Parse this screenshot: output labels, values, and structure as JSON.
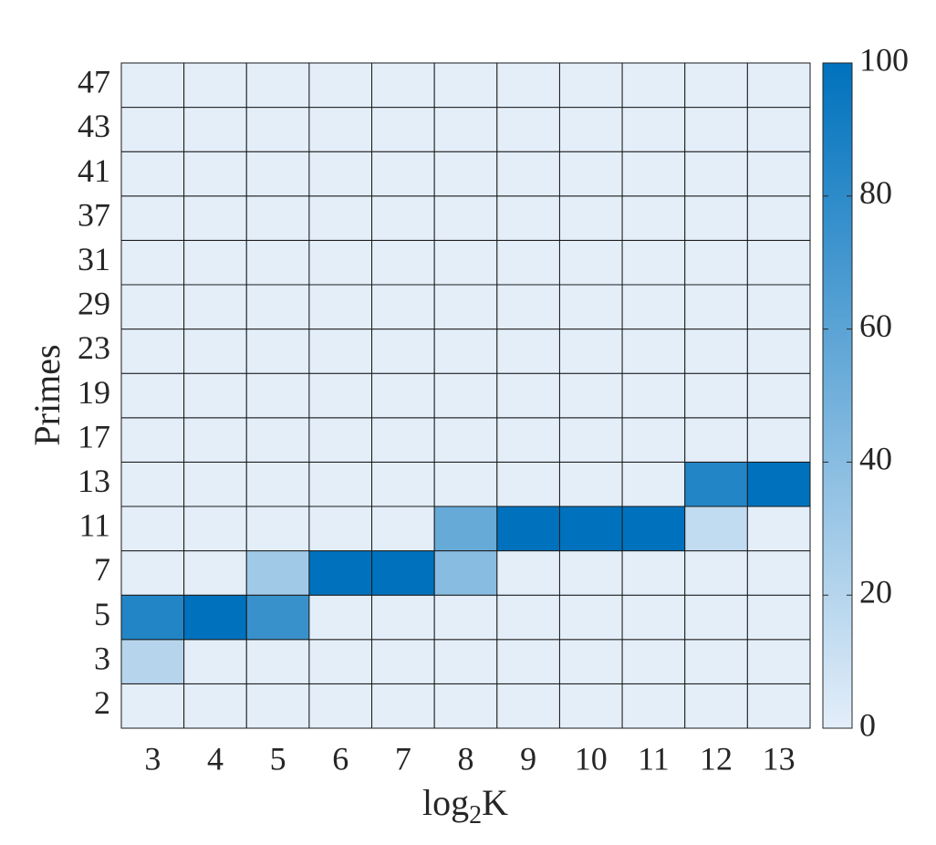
{
  "chart_data": {
    "type": "heatmap",
    "x_label": [
      "log",
      "2",
      "K"
    ],
    "y_label": "Primes",
    "x_categories": [
      3,
      4,
      5,
      6,
      7,
      8,
      9,
      10,
      11,
      12,
      13
    ],
    "y_categories": [
      2,
      3,
      5,
      7,
      11,
      13,
      17,
      19,
      23,
      29,
      31,
      37,
      41,
      43,
      47
    ],
    "values": [
      [
        0,
        0,
        0,
        0,
        0,
        0,
        0,
        0,
        0,
        0,
        0
      ],
      [
        20,
        0,
        0,
        0,
        0,
        0,
        0,
        0,
        0,
        0,
        0
      ],
      [
        85,
        100,
        75,
        0,
        0,
        0,
        0,
        0,
        0,
        0,
        0
      ],
      [
        0,
        0,
        30,
        100,
        100,
        40,
        0,
        0,
        0,
        0,
        0
      ],
      [
        0,
        0,
        0,
        0,
        0,
        55,
        100,
        100,
        100,
        15,
        0
      ],
      [
        0,
        0,
        0,
        0,
        0,
        0,
        0,
        0,
        0,
        85,
        100
      ],
      [
        0,
        0,
        0,
        0,
        0,
        0,
        0,
        0,
        0,
        0,
        0
      ],
      [
        0,
        0,
        0,
        0,
        0,
        0,
        0,
        0,
        0,
        0,
        0
      ],
      [
        0,
        0,
        0,
        0,
        0,
        0,
        0,
        0,
        0,
        0,
        0
      ],
      [
        0,
        0,
        0,
        0,
        0,
        0,
        0,
        0,
        0,
        0,
        0
      ],
      [
        0,
        0,
        0,
        0,
        0,
        0,
        0,
        0,
        0,
        0,
        0
      ],
      [
        0,
        0,
        0,
        0,
        0,
        0,
        0,
        0,
        0,
        0,
        0
      ],
      [
        0,
        0,
        0,
        0,
        0,
        0,
        0,
        0,
        0,
        0,
        0
      ],
      [
        0,
        0,
        0,
        0,
        0,
        0,
        0,
        0,
        0,
        0,
        0
      ],
      [
        0,
        0,
        0,
        0,
        0,
        0,
        0,
        0,
        0,
        0,
        0
      ]
    ],
    "colormap": [
      "#e3eef9",
      "#0072bd"
    ],
    "clim": [
      0,
      100
    ],
    "cticks": [
      0,
      20,
      40,
      60,
      80,
      100
    ]
  }
}
